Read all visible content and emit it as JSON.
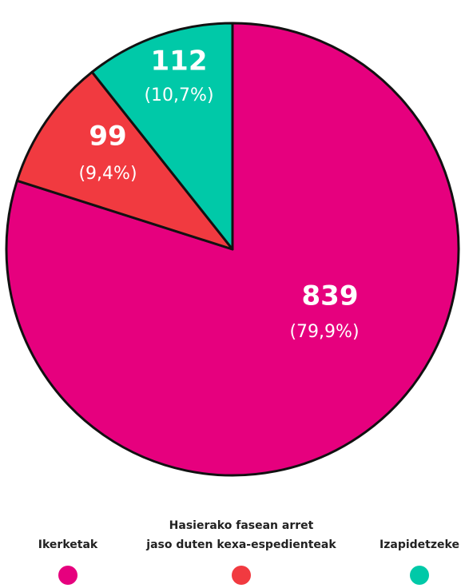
{
  "chart_data": {
    "type": "pie",
    "categories": [
      "Ikerketak",
      [
        "Hasierako fasean arret",
        "jaso duten kexa-espedienteak"
      ],
      "Izapidetzeke"
    ],
    "values": [
      839,
      99,
      112
    ],
    "percent_labels": [
      "(79,9%)",
      "(9,4%)",
      "(10,7%)"
    ],
    "colors": [
      "#e6007e",
      "#f13a40",
      "#00c9a8"
    ]
  }
}
